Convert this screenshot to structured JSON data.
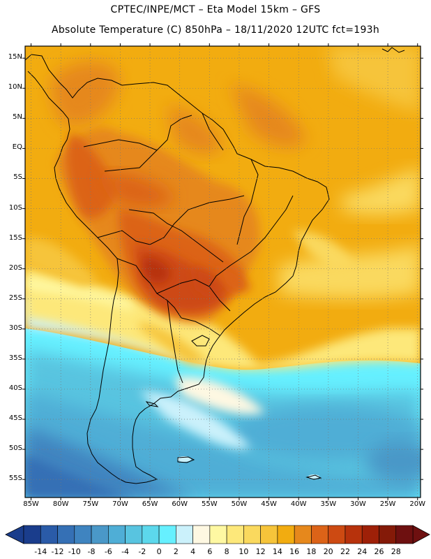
{
  "header": {
    "title_line1": "CPTEC/INPE/MCT –  Eta Model 15km – GFS",
    "title_line2": "Absolute Temperature (C) 850hPa – 18/11/2020 12UTC fct=193h"
  },
  "map": {
    "lat_labels": [
      "15N",
      "10N",
      "5N",
      "EQ",
      "5S",
      "10S",
      "15S",
      "20S",
      "25S",
      "30S",
      "35S",
      "40S",
      "45S",
      "50S",
      "55S"
    ],
    "lon_labels": [
      "85W",
      "80W",
      "75W",
      "70W",
      "65W",
      "60W",
      "55W",
      "50W",
      "45W",
      "40W",
      "35W",
      "30W",
      "25W",
      "20W"
    ],
    "lat_values": [
      15,
      10,
      5,
      0,
      -5,
      -10,
      -15,
      -20,
      -25,
      -30,
      -35,
      -40,
      -45,
      -50,
      -55
    ],
    "lon_values": [
      -85,
      -80,
      -75,
      -70,
      -65,
      -60,
      -55,
      -50,
      -45,
      -40,
      -35,
      -30,
      -25,
      -20
    ],
    "extent": {
      "lon_min": -86,
      "lon_max": -19.5,
      "lat_min": -58,
      "lat_max": 17
    },
    "gridlines": "dotted"
  },
  "colorbar": {
    "labels": [
      "-14",
      "-12",
      "-10",
      "-8",
      "-6",
      "-4",
      "-2",
      "0",
      "2",
      "4",
      "6",
      "8",
      "10",
      "12",
      "14",
      "16",
      "18",
      "20",
      "22",
      "24",
      "26",
      "28"
    ],
    "colors": [
      "#1a3d8c",
      "#2a5ba8",
      "#3570b5",
      "#3f84c0",
      "#4a98c8",
      "#4faed6",
      "#58c4e0",
      "#5cd8ec",
      "#66f0ff",
      "#cbf1fb",
      "#fef8e2",
      "#fef8a2",
      "#fde87a",
      "#fad95e",
      "#f6c43a",
      "#f2ac10",
      "#e6881c",
      "#dc6318",
      "#cd4a12",
      "#b7320c",
      "#9e2008",
      "#841a08",
      "#6e1010"
    ]
  }
}
